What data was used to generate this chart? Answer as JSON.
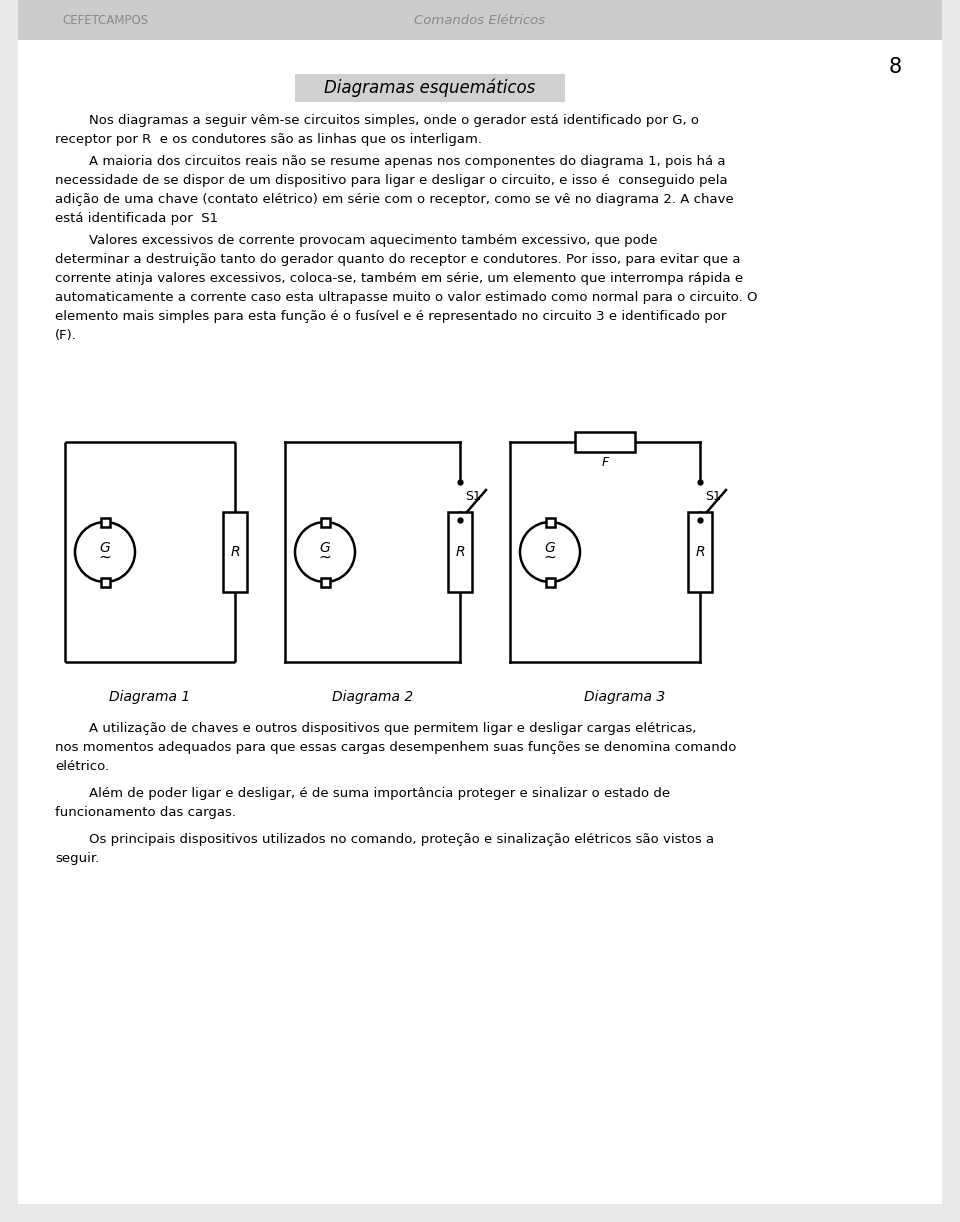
{
  "bg_color": "#e8e8e8",
  "page_bg": "#ffffff",
  "header_text_left": "CEFETCAMPOS",
  "header_text_center": "Comandos Elétricos",
  "page_number": "8",
  "title": "Diagramas esquemáticos",
  "para1_indent": "        Nos diagramas a seguir vêm-se circuitos simples, onde o gerador está identificado por G, o",
  "para1_line2": "receptor por R  e os condutores são as linhas que os interligam.",
  "para2_line1": "        A maioria dos circuitos reais não se resume apenas nos componentes do diagrama 1, pois há a",
  "para2_line2": "necessidade de se dispor de um dispositivo para ligar e desligar o circuito, e isso é  conseguido pela",
  "para2_line3": "adição de uma chave (contato elétrico) em série com o receptor, como se vê no diagrama 2. A chave",
  "para2_line4": "está identificada por  S1",
  "para3_line1": "        Valores excessivos de corrente provocam aquecimento também excessivo, que pode",
  "para3_line2": "determinar a destruição tanto do gerador quanto do receptor e condutores. Por isso, para evitar que a",
  "para3_line3": "corrente atinja valores excessivos, coloca-se, também em série, um elemento que interrompa rápida e",
  "para3_line4": "automaticamente a corrente caso esta ultrapasse muito o valor estimado como normal para o circuito. O",
  "para3_line5": "elemento mais simples para esta função é o fusível e é representado no circuito 3 e identificado por",
  "para3_line6": "(F).",
  "diag1_label": "Diagrama 1",
  "diag2_label": "Diagrama 2",
  "diag3_label": "Diagrama 3",
  "para4_line1": "        A utilização de chaves e outros dispositivos que permitem ligar e desligar cargas elétricas,",
  "para4_line2": "nos momentos adequados para que essas cargas desempenhem suas funções se denomina comando",
  "para4_line3": "elétrico.",
  "para5_line1": "        Além de poder ligar e desligar, é de suma importância proteger e sinalizar o estado de",
  "para5_line2": "funcionamento das cargas.",
  "para6_line1": "        Os principais dispositivos utilizados no comando, proteção e sinalização elétricos são vistos a",
  "para6_line2": "seguir.",
  "text_color": "#000000",
  "header_color": "#999999",
  "lw": 1.8
}
